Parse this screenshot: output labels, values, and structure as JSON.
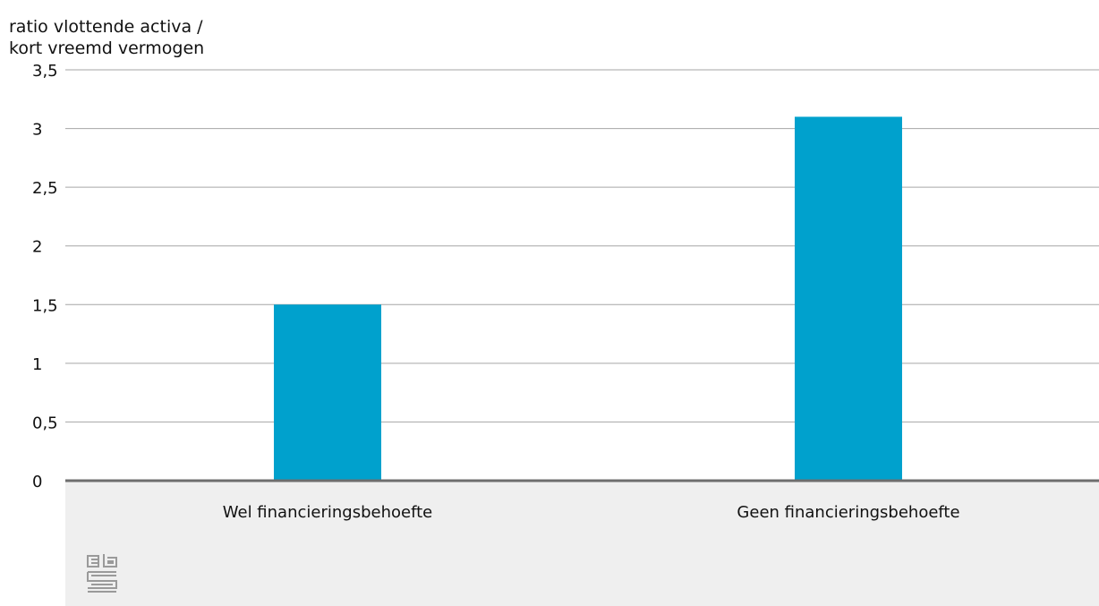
{
  "title_fragment": "",
  "chart_data": {
    "type": "bar",
    "ylabel_lines": [
      "ratio vlottende activa /",
      "kort vreemd vermogen"
    ],
    "categories": [
      "Wel financieringsbehoefte",
      "Geen financieringsbehoefte"
    ],
    "values": [
      1.5,
      3.1
    ],
    "yticks": [
      "0",
      "0,5",
      "1",
      "1,5",
      "2",
      "2,5",
      "3",
      "3,5"
    ],
    "ytick_values": [
      0,
      0.5,
      1,
      1.5,
      2,
      2.5,
      3,
      3.5
    ],
    "ylim": [
      0,
      3.5
    ],
    "grid": true,
    "bar_color": "#00a1cd",
    "axis_color": "#6e6e6e",
    "grid_color": "#a6a6a6"
  },
  "logo": {
    "icon": "cbs-logo-icon"
  }
}
